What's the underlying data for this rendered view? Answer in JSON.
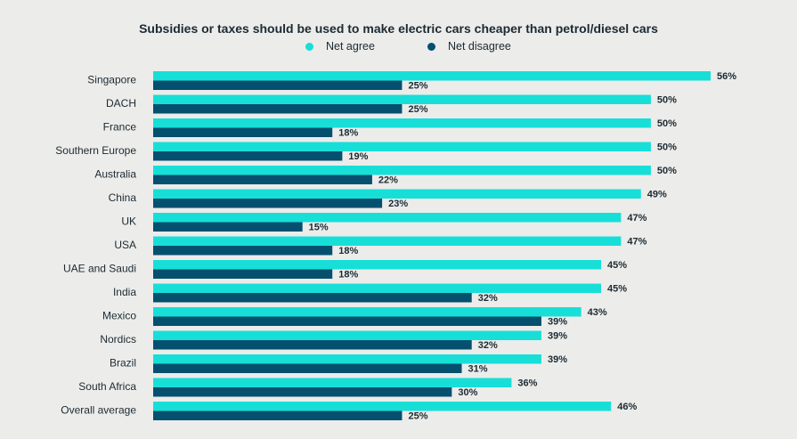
{
  "chart_data": {
    "type": "bar",
    "orientation": "horizontal",
    "title": "Subsidies or taxes should be used to make electric cars cheaper than petrol/diesel cars",
    "legend_position": "top-center",
    "categories": [
      "Singapore",
      "DACH",
      "France",
      "Southern Europe",
      "Australia",
      "China",
      "UK",
      "USA",
      "UAE and Saudi",
      "India",
      "Mexico",
      "Nordics",
      "Brazil",
      "South Africa",
      "Overall average"
    ],
    "series": [
      {
        "name": "Net agree",
        "color": "#17dfd8",
        "values": [
          56,
          50,
          50,
          50,
          50,
          49,
          47,
          47,
          45,
          45,
          43,
          39,
          39,
          36,
          46
        ]
      },
      {
        "name": "Net disagree",
        "color": "#05506f",
        "values": [
          25,
          25,
          18,
          19,
          22,
          23,
          15,
          18,
          18,
          32,
          39,
          32,
          31,
          30,
          25
        ]
      }
    ],
    "value_suffix": "%",
    "xlim": [
      0,
      56
    ],
    "grid": false
  }
}
